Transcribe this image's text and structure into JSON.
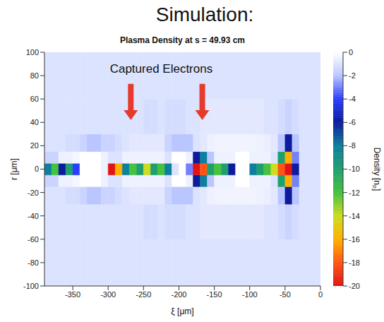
{
  "chart_data": {
    "type": "heatmap",
    "title": "Simulation:",
    "subtitle": "Plasma Density at s = 49.93 cm",
    "xlabel": "ξ [μm]",
    "ylabel": "r [μm]",
    "xlim": [
      -390,
      0
    ],
    "xticks": [
      -350,
      -300,
      -250,
      -200,
      -150,
      -100,
      -50,
      0
    ],
    "ylim": [
      -100,
      100
    ],
    "yticks": [
      -100,
      -80,
      -60,
      -40,
      -20,
      0,
      20,
      40,
      60,
      80,
      100
    ],
    "grid": false,
    "colorbar": {
      "label": "Density [nₚ]",
      "range": [
        -20,
        0
      ],
      "ticks": [
        -20,
        -18,
        -16,
        -14,
        -12,
        -10,
        -8,
        -6,
        -4,
        -2,
        0
      ]
    },
    "cells": {
      "x_edges": [
        -390,
        -380,
        -370,
        -360,
        -350,
        -340,
        -330,
        -320,
        -310,
        -300,
        -290,
        -280,
        -270,
        -260,
        -250,
        -240,
        -230,
        -220,
        -210,
        -200,
        -190,
        -180,
        -170,
        -160,
        -150,
        -140,
        -130,
        -120,
        -110,
        -100,
        -90,
        -80,
        -70,
        -60,
        -50,
        -40,
        -30,
        -20,
        -10,
        0
      ],
      "y_edges": [
        -100,
        -60,
        -30,
        -15,
        -5,
        5,
        15,
        30,
        60,
        100
      ],
      "z": [
        [
          -1,
          -1,
          -1,
          -1,
          -1,
          -1,
          -1,
          -1,
          -1,
          -1,
          -1,
          -1,
          -1,
          -1,
          -1,
          -1,
          -1,
          -1,
          -1,
          -1,
          -1,
          -1,
          -1,
          -1,
          -1,
          -1,
          -1,
          -1,
          -1,
          -1,
          -1,
          -1,
          -1,
          -1,
          -1,
          -1,
          -1,
          -1,
          -1
        ],
        [
          -1,
          -1,
          -1,
          -1,
          -1,
          -1,
          -1,
          -1,
          -1,
          -1,
          -1,
          -1,
          -1,
          -1,
          -1.2,
          -1.2,
          -1,
          -1.2,
          -1.2,
          -1.2,
          -1,
          -1,
          -0.8,
          -0.8,
          -0.8,
          -0.8,
          -0.8,
          -0.8,
          -0.8,
          -0.8,
          -0.8,
          -1,
          -1,
          -1.2,
          -1.5,
          -1.2,
          -1,
          -1,
          -1
        ],
        [
          -1,
          -1,
          -1,
          -1.2,
          -1.2,
          -1.5,
          -2,
          -2,
          -1.5,
          -1.5,
          -1.2,
          -1,
          -0.8,
          -0.8,
          -0.8,
          -0.8,
          -0.8,
          -1.5,
          -2,
          -2,
          -2,
          -1,
          -0.8,
          -0.5,
          -0.4,
          -0.4,
          -0.4,
          -0.4,
          -0.4,
          -0.4,
          -0.5,
          -0.6,
          -0.8,
          -2,
          -6,
          -2,
          -1,
          -1,
          -1
        ],
        [
          -1.5,
          -1.5,
          -0.5,
          -0.5,
          -0.3,
          0,
          0,
          0,
          -0.5,
          -1,
          -1,
          -0.5,
          -0.5,
          -0.5,
          -0.5,
          -0.5,
          -0.5,
          -1,
          0,
          0,
          -0.5,
          -6,
          -8,
          -2,
          -0.5,
          -0.5,
          -0.5,
          0,
          0,
          -0.5,
          -0.5,
          -0.5,
          -1,
          -10,
          -16,
          -3,
          -1,
          -1,
          -1
        ],
        [
          -8,
          -12,
          -6,
          -10,
          -4,
          0,
          0,
          0,
          -0.5,
          -20,
          -16,
          -8,
          -12,
          -10,
          -14,
          -10,
          -12,
          -8,
          -1,
          0,
          -3,
          -20,
          -18,
          -10,
          -12,
          -10,
          -6,
          0,
          0,
          -8,
          -10,
          -12,
          -14,
          -18,
          -20,
          -6,
          -1,
          -1,
          -1
        ],
        [
          -1.5,
          -1.5,
          -0.5,
          -0.5,
          -0.3,
          0,
          0,
          0,
          -0.5,
          -1,
          -1,
          -0.5,
          -0.5,
          -0.5,
          -0.5,
          -0.5,
          -0.5,
          -1,
          0,
          0,
          -0.5,
          -6,
          -8,
          -2,
          -0.5,
          -0.5,
          -0.5,
          0,
          0,
          -0.5,
          -0.5,
          -0.5,
          -1,
          -10,
          -16,
          -3,
          -1,
          -1,
          -1
        ],
        [
          -1,
          -1,
          -1,
          -1.2,
          -1.2,
          -1.5,
          -2,
          -2,
          -1.5,
          -1.5,
          -1.2,
          -1,
          -0.8,
          -0.8,
          -0.8,
          -0.8,
          -0.8,
          -1.5,
          -2,
          -2,
          -2,
          -1,
          -0.8,
          -0.5,
          -0.4,
          -0.4,
          -0.4,
          -0.4,
          -0.4,
          -0.4,
          -0.5,
          -0.6,
          -0.8,
          -2,
          -6,
          -2,
          -1,
          -1,
          -1
        ],
        [
          -1,
          -1,
          -1,
          -1,
          -1,
          -1,
          -1,
          -1,
          -1,
          -1,
          -1,
          -1,
          -1,
          -1,
          -1.2,
          -1.2,
          -1,
          -1.2,
          -1.2,
          -1.2,
          -1,
          -1,
          -0.8,
          -0.8,
          -0.8,
          -0.8,
          -0.8,
          -0.8,
          -0.8,
          -0.8,
          -0.8,
          -1,
          -1,
          -1.2,
          -1.5,
          -1.2,
          -1,
          -1,
          -1
        ],
        [
          -1,
          -1,
          -1,
          -1,
          -1,
          -1,
          -1,
          -1,
          -1,
          -1,
          -1,
          -1,
          -1,
          -1,
          -1,
          -1,
          -1,
          -1,
          -1,
          -1,
          -1,
          -1,
          -1,
          -1,
          -1,
          -1,
          -1,
          -1,
          -1,
          -1,
          -1,
          -1,
          -1,
          -1,
          -1,
          -1,
          -1,
          -1,
          -1
        ]
      ]
    },
    "annotations": [
      {
        "text": "Captured Electrons",
        "x": -225,
        "y": 86,
        "color": "#e53b2c",
        "arrows": [
          {
            "x": -268,
            "from": 73,
            "to": 42
          },
          {
            "x": -167,
            "from": 73,
            "to": 42
          }
        ]
      }
    ]
  }
}
